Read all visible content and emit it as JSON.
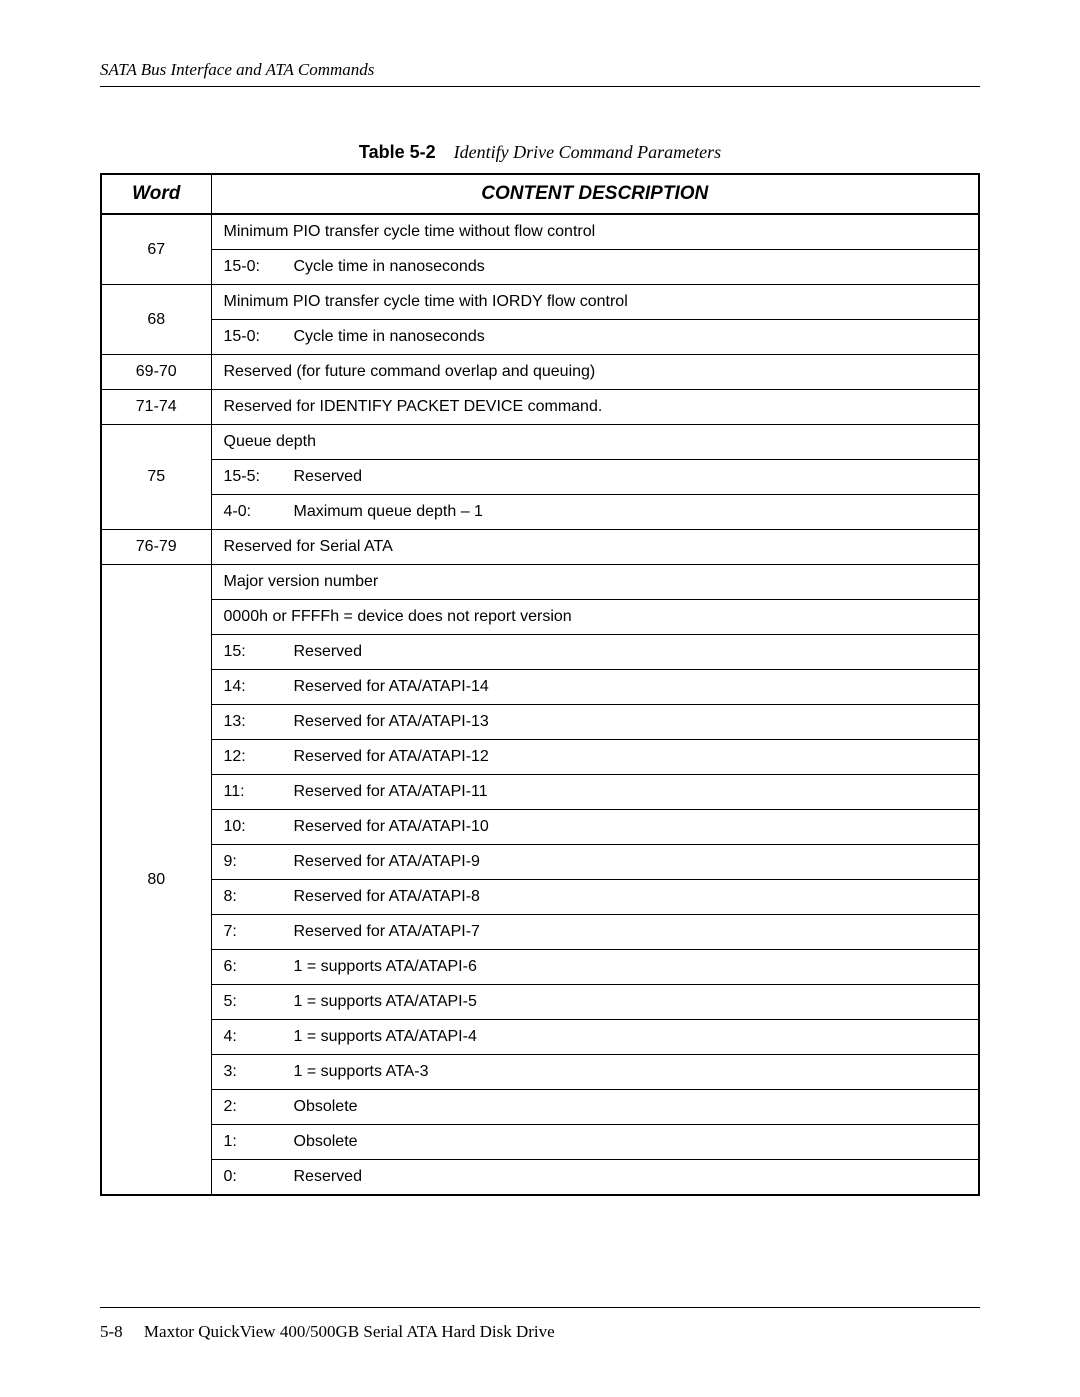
{
  "header": {
    "running_title": "SATA Bus Interface and ATA Commands"
  },
  "caption": {
    "label": "Table 5-2",
    "title": "Identify Drive Command Parameters"
  },
  "table": {
    "headers": {
      "word": "Word",
      "content": "CONTENT DESCRIPTION"
    },
    "rows": [
      {
        "word": "67",
        "cells": [
          {
            "type": "text",
            "text": "Minimum PIO transfer cycle time without flow control"
          },
          {
            "type": "bits",
            "bits": "15-0:",
            "desc": "Cycle time in nanoseconds"
          }
        ]
      },
      {
        "word": "68",
        "cells": [
          {
            "type": "text",
            "text": "Minimum PIO transfer cycle time with IORDY flow control"
          },
          {
            "type": "bits",
            "bits": "15-0:",
            "desc": "Cycle time in nanoseconds"
          }
        ]
      },
      {
        "word": "69-70",
        "cells": [
          {
            "type": "text",
            "text": "Reserved (for future command overlap and queuing)"
          }
        ]
      },
      {
        "word": "71-74",
        "cells": [
          {
            "type": "text",
            "text": "Reserved for IDENTIFY PACKET DEVICE command."
          }
        ]
      },
      {
        "word": "75",
        "cells": [
          {
            "type": "text",
            "text": "Queue depth"
          },
          {
            "type": "bits",
            "bits": "15-5:",
            "desc": "Reserved"
          },
          {
            "type": "bits",
            "bits": "4-0:",
            "desc": "Maximum queue depth – 1"
          }
        ]
      },
      {
        "word": "76-79",
        "cells": [
          {
            "type": "text",
            "text": "Reserved for Serial ATA"
          }
        ]
      },
      {
        "word": "80",
        "cells": [
          {
            "type": "text",
            "text": "Major version number"
          },
          {
            "type": "text",
            "text": "0000h or FFFFh = device does not report version"
          },
          {
            "type": "bits",
            "bits": "15:",
            "desc": "Reserved"
          },
          {
            "type": "bits",
            "bits": "14:",
            "desc": "Reserved for ATA/ATAPI-14"
          },
          {
            "type": "bits",
            "bits": "13:",
            "desc": "Reserved for ATA/ATAPI-13"
          },
          {
            "type": "bits",
            "bits": "12:",
            "desc": "Reserved for ATA/ATAPI-12"
          },
          {
            "type": "bits",
            "bits": "11:",
            "desc": "Reserved for ATA/ATAPI-11"
          },
          {
            "type": "bits",
            "bits": "10:",
            "desc": "Reserved for ATA/ATAPI-10"
          },
          {
            "type": "bits",
            "bits": "9:",
            "desc": "Reserved for ATA/ATAPI-9"
          },
          {
            "type": "bits",
            "bits": "8:",
            "desc": "Reserved for ATA/ATAPI-8"
          },
          {
            "type": "bits",
            "bits": "7:",
            "desc": "Reserved for ATA/ATAPI-7"
          },
          {
            "type": "bits",
            "bits": "6:",
            "desc": "1 = supports ATA/ATAPI-6"
          },
          {
            "type": "bits",
            "bits": "5:",
            "desc": "1 = supports ATA/ATAPI-5"
          },
          {
            "type": "bits",
            "bits": "4:",
            "desc": "1 = supports ATA/ATAPI-4"
          },
          {
            "type": "bits",
            "bits": "3:",
            "desc": "1 = supports ATA-3"
          },
          {
            "type": "bits",
            "bits": "2:",
            "desc": "Obsolete"
          },
          {
            "type": "bits",
            "bits": "1:",
            "desc": "Obsolete"
          },
          {
            "type": "bits",
            "bits": "0:",
            "desc": "Reserved"
          }
        ]
      }
    ]
  },
  "footer": {
    "page_num": "5-8",
    "doc_title": "Maxtor QuickView 400/500GB Serial ATA Hard Disk Drive"
  }
}
